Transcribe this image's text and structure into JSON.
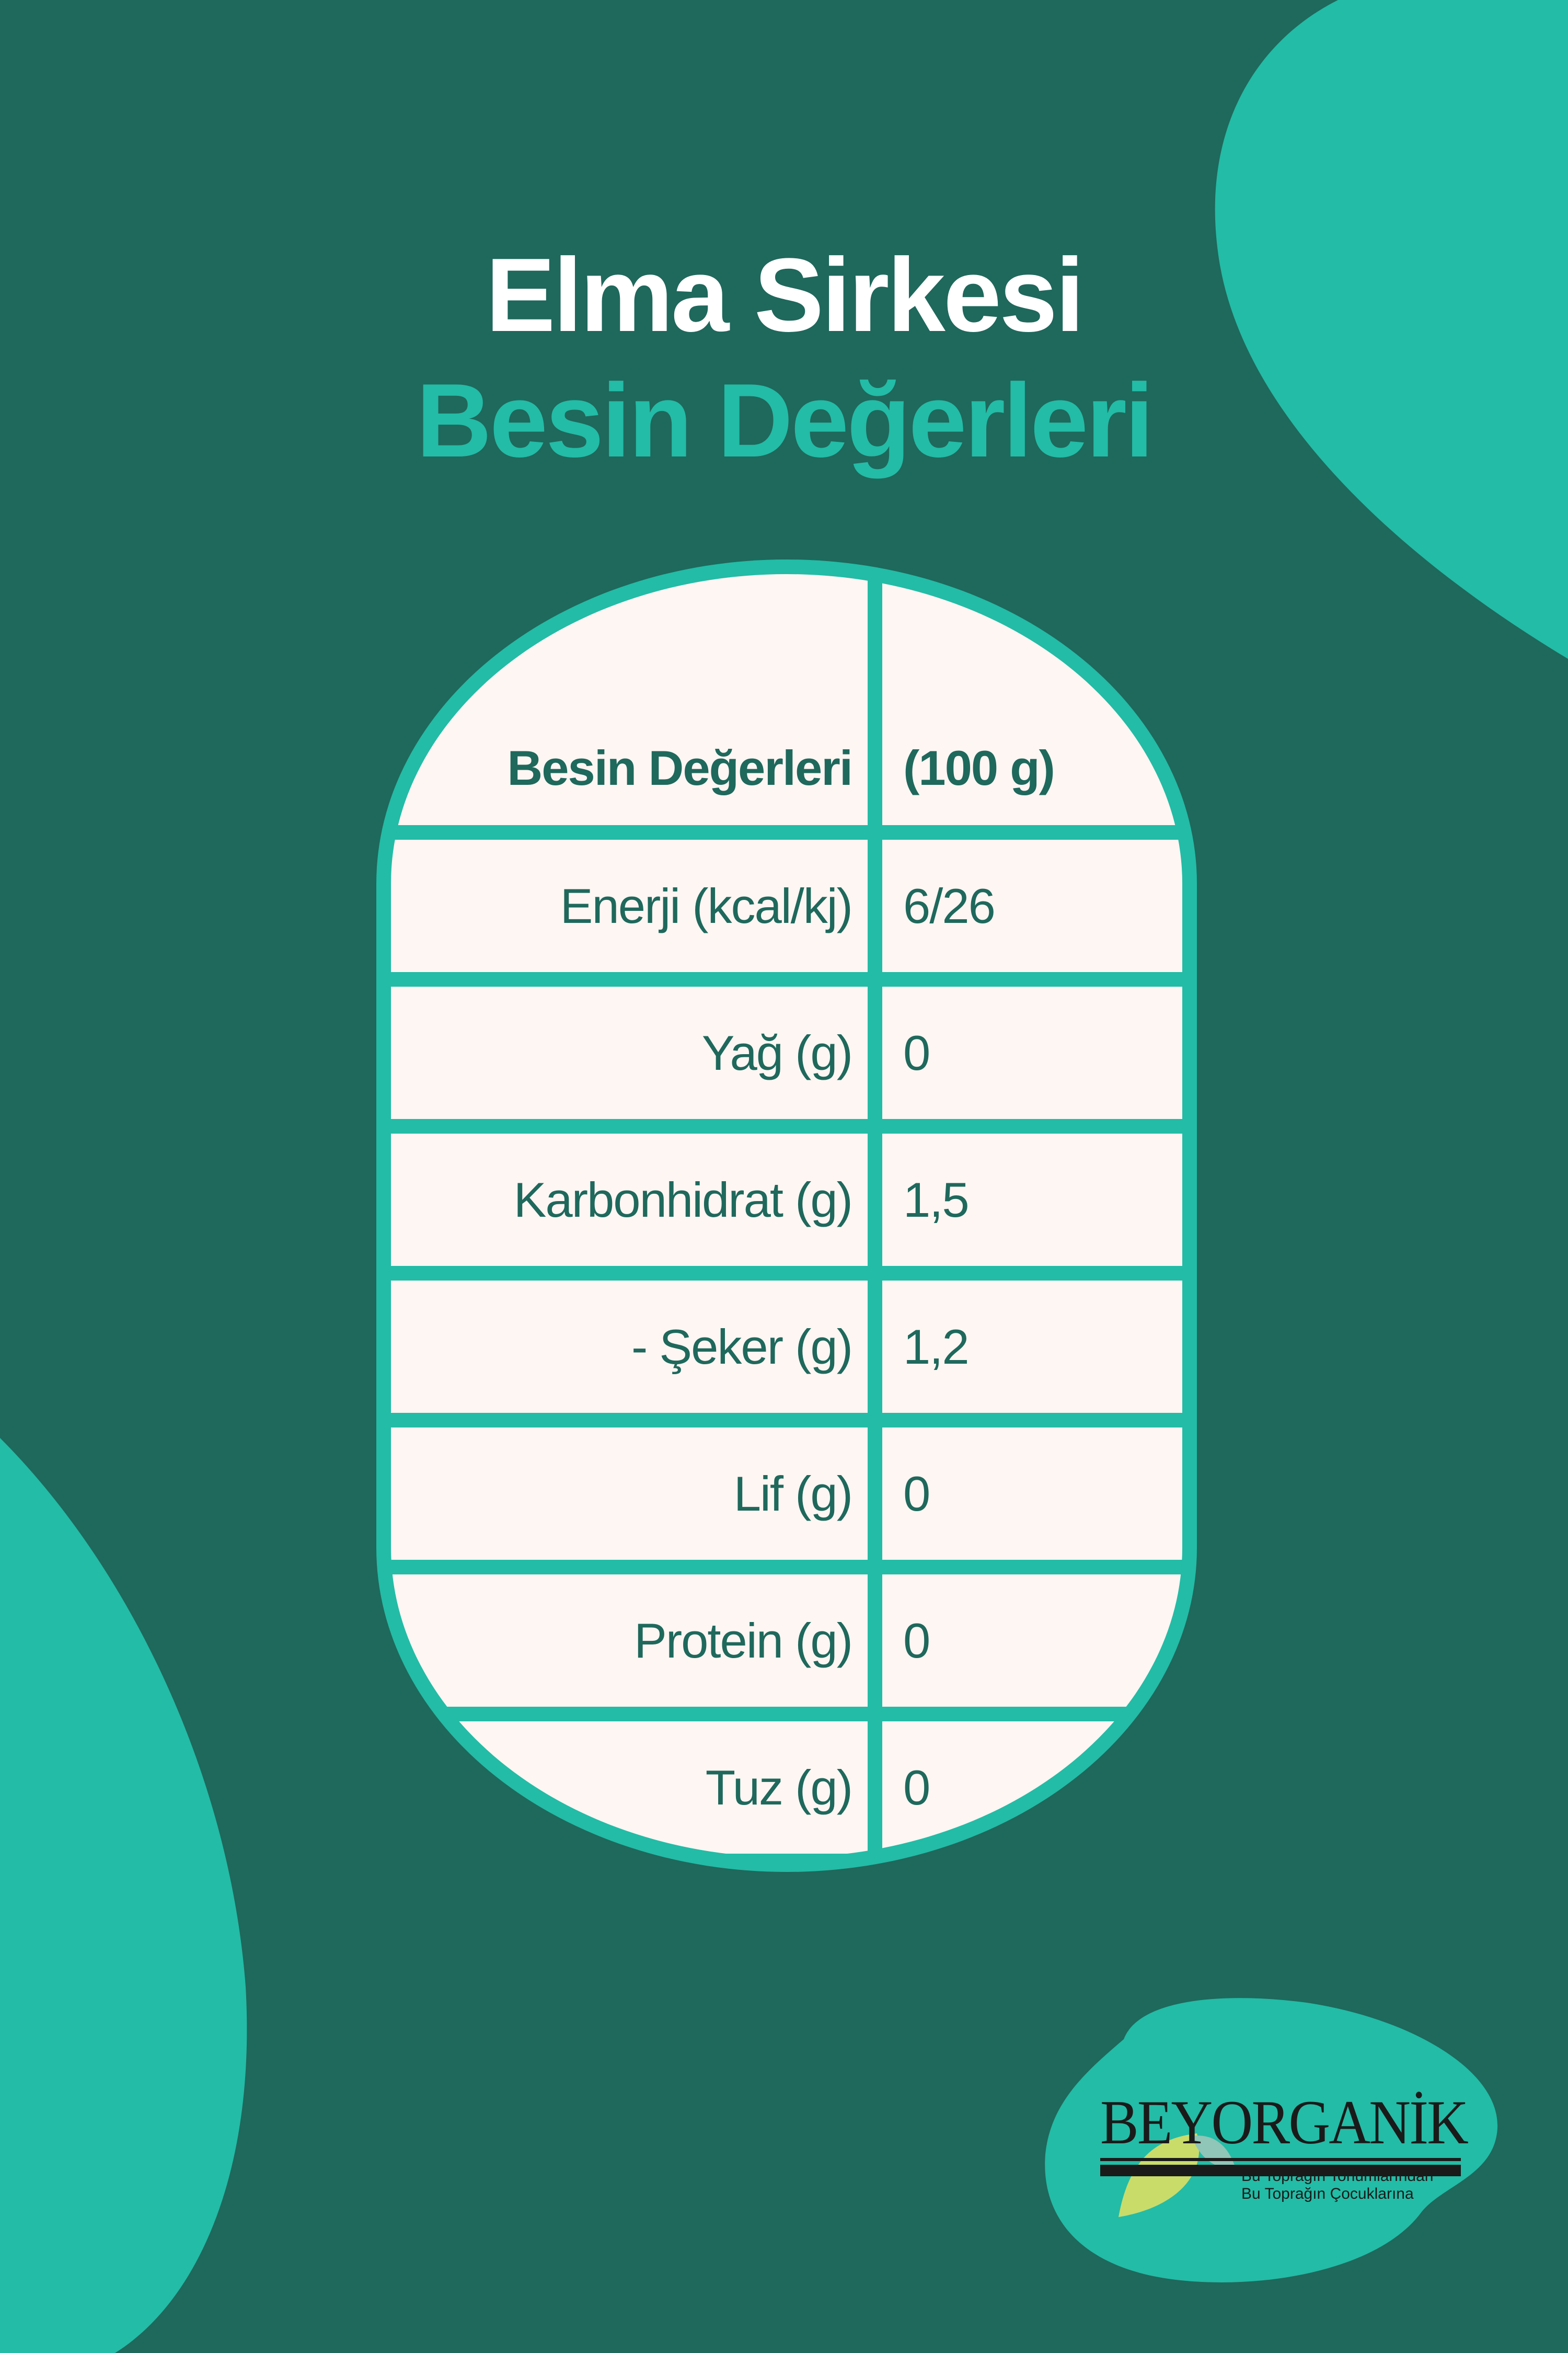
{
  "colors": {
    "background": "#1f685c",
    "accent": "#23bca6",
    "cell": "#fdf6f3",
    "text": "#1f685c",
    "title": "#ffffff"
  },
  "title": {
    "line1": "Elma Sirkesi",
    "line2": "Besin Değerleri"
  },
  "table": {
    "header": {
      "label": "Besin Değerleri",
      "value": "(100 g)"
    },
    "rows": [
      {
        "label": "Enerji (kcal/kj)",
        "value": "6/26"
      },
      {
        "label": "Yağ (g)",
        "value": "0"
      },
      {
        "label": "Karbonhidrat (g)",
        "value": "1,5"
      },
      {
        "label": "- Şeker (g)",
        "value": "1,2"
      },
      {
        "label": "Lif (g)",
        "value": "0"
      },
      {
        "label": "Protein (g)",
        "value": "0"
      },
      {
        "label": "Tuz (g)",
        "value": "0"
      }
    ]
  },
  "logo": {
    "name": "BEYORGANİK",
    "tagline_1": "Bu Toprağın Tohumlarından",
    "tagline_2": "Bu Toprağın Çocuklarına",
    "icon": "leaf-icon"
  }
}
